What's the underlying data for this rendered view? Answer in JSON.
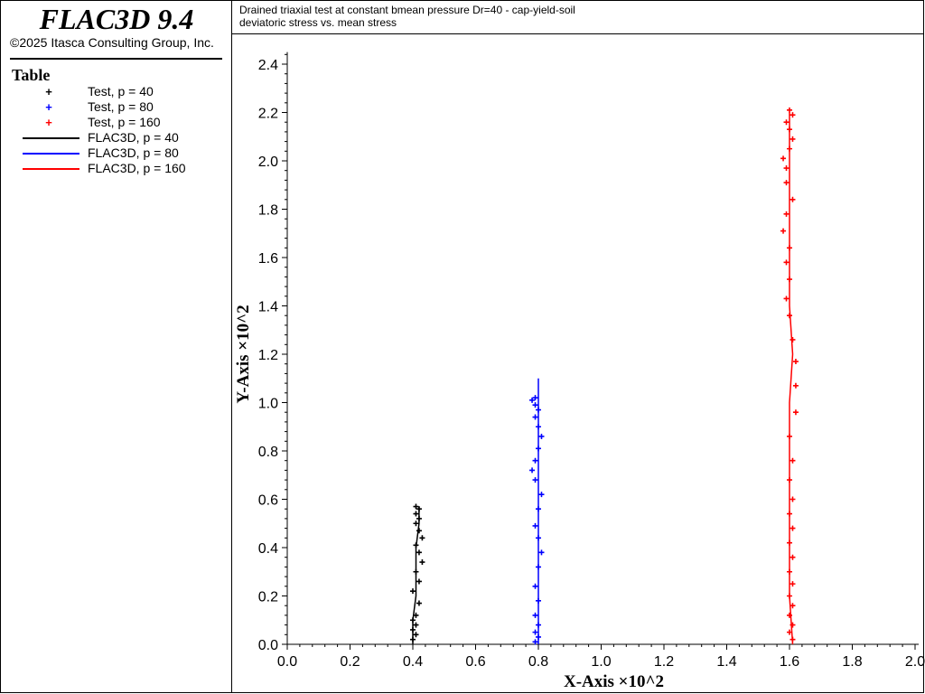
{
  "header": {
    "app_title": "FLAC3D 9.4",
    "copyright": "©2025 Itasca Consulting Group, Inc."
  },
  "legend": {
    "title": "Table",
    "items": [
      {
        "label": "Test, p = 40",
        "kind": "marker",
        "color": "#000000"
      },
      {
        "label": "Test, p = 80",
        "kind": "marker",
        "color": "#0000ff"
      },
      {
        "label": "Test, p = 160",
        "kind": "marker",
        "color": "#ff0000"
      },
      {
        "label": "FLAC3D, p = 40",
        "kind": "line",
        "color": "#000000"
      },
      {
        "label": "FLAC3D, p = 80",
        "kind": "line",
        "color": "#0000ff"
      },
      {
        "label": "FLAC3D, p = 160",
        "kind": "line",
        "color": "#ff0000"
      }
    ]
  },
  "plot": {
    "title_line1": "Drained triaxial test at constant bmean pressure Dr=40 - cap-yield-soil",
    "title_line2": "deviatoric stress vs. mean stress"
  },
  "chart_data": {
    "type": "scatter",
    "xlabel": "X-Axis ×10^2",
    "ylabel": "Y-Axis ×10^2",
    "xlim": [
      0,
      2.0
    ],
    "ylim": [
      0,
      2.45
    ],
    "xticks": [
      "0.0",
      "0.2",
      "0.4",
      "0.6",
      "0.8",
      "1.0",
      "1.2",
      "1.4",
      "1.6",
      "1.8",
      "2.0"
    ],
    "yticks": [
      "0.0",
      "0.2",
      "0.4",
      "0.6",
      "0.8",
      "1.0",
      "1.2",
      "1.4",
      "1.6",
      "1.8",
      "2.0",
      "2.2",
      "2.4"
    ],
    "grid": false,
    "legend_position": "left-panel",
    "series": [
      {
        "name": "Test, p = 40",
        "kind": "marker",
        "color": "#000000",
        "points": [
          [
            0.4,
            0.02
          ],
          [
            0.41,
            0.04
          ],
          [
            0.4,
            0.06
          ],
          [
            0.41,
            0.08
          ],
          [
            0.4,
            0.1
          ],
          [
            0.41,
            0.12
          ],
          [
            0.42,
            0.17
          ],
          [
            0.4,
            0.22
          ],
          [
            0.42,
            0.26
          ],
          [
            0.41,
            0.3
          ],
          [
            0.43,
            0.34
          ],
          [
            0.42,
            0.38
          ],
          [
            0.41,
            0.41
          ],
          [
            0.43,
            0.44
          ],
          [
            0.42,
            0.47
          ],
          [
            0.41,
            0.5
          ],
          [
            0.42,
            0.52
          ],
          [
            0.41,
            0.54
          ],
          [
            0.42,
            0.56
          ],
          [
            0.41,
            0.57
          ]
        ]
      },
      {
        "name": "Test, p = 80",
        "kind": "marker",
        "color": "#0000ff",
        "points": [
          [
            0.79,
            0.01
          ],
          [
            0.8,
            0.03
          ],
          [
            0.79,
            0.05
          ],
          [
            0.8,
            0.08
          ],
          [
            0.79,
            0.12
          ],
          [
            0.8,
            0.18
          ],
          [
            0.79,
            0.24
          ],
          [
            0.8,
            0.32
          ],
          [
            0.81,
            0.38
          ],
          [
            0.8,
            0.44
          ],
          [
            0.79,
            0.49
          ],
          [
            0.8,
            0.56
          ],
          [
            0.81,
            0.62
          ],
          [
            0.79,
            0.68
          ],
          [
            0.78,
            0.72
          ],
          [
            0.79,
            0.76
          ],
          [
            0.8,
            0.81
          ],
          [
            0.81,
            0.86
          ],
          [
            0.8,
            0.9
          ],
          [
            0.79,
            0.94
          ],
          [
            0.8,
            0.97
          ],
          [
            0.79,
            0.99
          ],
          [
            0.78,
            1.01
          ],
          [
            0.79,
            1.02
          ]
        ]
      },
      {
        "name": "Test, p = 160",
        "kind": "marker",
        "color": "#ff0000",
        "points": [
          [
            1.61,
            0.02
          ],
          [
            1.6,
            0.05
          ],
          [
            1.61,
            0.08
          ],
          [
            1.6,
            0.12
          ],
          [
            1.61,
            0.16
          ],
          [
            1.6,
            0.2
          ],
          [
            1.61,
            0.25
          ],
          [
            1.6,
            0.3
          ],
          [
            1.61,
            0.36
          ],
          [
            1.6,
            0.42
          ],
          [
            1.61,
            0.48
          ],
          [
            1.6,
            0.54
          ],
          [
            1.61,
            0.6
          ],
          [
            1.6,
            0.68
          ],
          [
            1.61,
            0.76
          ],
          [
            1.6,
            0.86
          ],
          [
            1.62,
            0.96
          ],
          [
            1.62,
            1.07
          ],
          [
            1.62,
            1.17
          ],
          [
            1.61,
            1.26
          ],
          [
            1.6,
            1.36
          ],
          [
            1.59,
            1.43
          ],
          [
            1.6,
            1.51
          ],
          [
            1.59,
            1.58
          ],
          [
            1.6,
            1.64
          ],
          [
            1.58,
            1.71
          ],
          [
            1.59,
            1.78
          ],
          [
            1.61,
            1.84
          ],
          [
            1.59,
            1.91
          ],
          [
            1.59,
            1.97
          ],
          [
            1.58,
            2.01
          ],
          [
            1.6,
            2.05
          ],
          [
            1.61,
            2.09
          ],
          [
            1.6,
            2.13
          ],
          [
            1.59,
            2.16
          ],
          [
            1.61,
            2.19
          ],
          [
            1.6,
            2.21
          ]
        ]
      },
      {
        "name": "FLAC3D, p = 40",
        "kind": "line",
        "color": "#000000",
        "points": [
          [
            0.4,
            0.0
          ],
          [
            0.4,
            0.1
          ],
          [
            0.41,
            0.2
          ],
          [
            0.41,
            0.3
          ],
          [
            0.41,
            0.4
          ],
          [
            0.42,
            0.5
          ],
          [
            0.42,
            0.57
          ]
        ]
      },
      {
        "name": "FLAC3D, p = 80",
        "kind": "line",
        "color": "#0000ff",
        "points": [
          [
            0.8,
            0.0
          ],
          [
            0.8,
            0.2
          ],
          [
            0.8,
            0.4
          ],
          [
            0.8,
            0.6
          ],
          [
            0.8,
            0.8
          ],
          [
            0.8,
            1.0
          ],
          [
            0.8,
            1.1
          ]
        ]
      },
      {
        "name": "FLAC3D, p = 160",
        "kind": "line",
        "color": "#ff0000",
        "points": [
          [
            1.61,
            0.0
          ],
          [
            1.6,
            0.2
          ],
          [
            1.6,
            0.4
          ],
          [
            1.6,
            0.6
          ],
          [
            1.6,
            0.8
          ],
          [
            1.6,
            1.0
          ],
          [
            1.61,
            1.2
          ],
          [
            1.6,
            1.4
          ],
          [
            1.6,
            1.6
          ],
          [
            1.6,
            1.8
          ],
          [
            1.6,
            2.0
          ],
          [
            1.6,
            2.2
          ]
        ]
      }
    ]
  }
}
